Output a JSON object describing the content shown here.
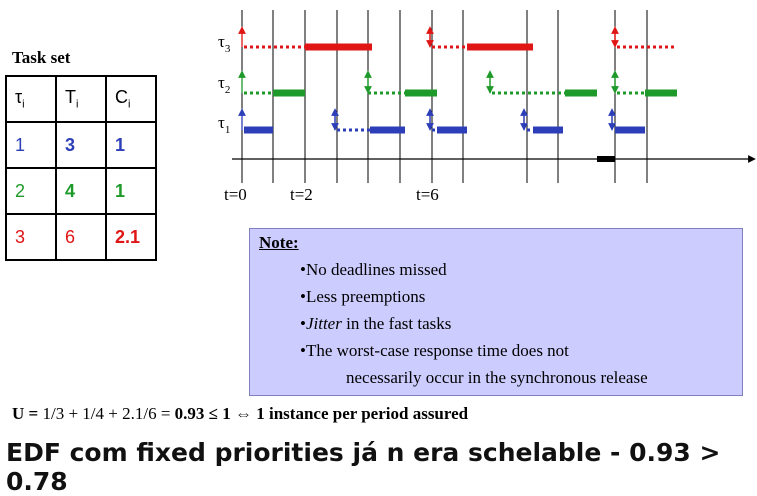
{
  "task_set": {
    "title": "Task set",
    "header": [
      {
        "symbol": "τ",
        "sub": "i"
      },
      {
        "symbol": "T",
        "sub": "i"
      },
      {
        "symbol": "C",
        "sub": "i"
      }
    ],
    "rows": [
      [
        "1",
        "3",
        "1"
      ],
      [
        "2",
        "4",
        "1"
      ],
      [
        "3",
        "6",
        "2.1"
      ]
    ]
  },
  "timeline": {
    "task_labels": [
      {
        "symbol": "τ",
        "sub": "3"
      },
      {
        "symbol": "τ",
        "sub": "2"
      },
      {
        "symbol": "τ",
        "sub": "1"
      }
    ],
    "time_labels": [
      "t=0",
      "t=2",
      "t=6"
    ]
  },
  "note": {
    "title": "Note:",
    "items": [
      "•No deadlines missed",
      "•Less preemptions",
      {
        "bullet": "•",
        "em": "Jitter",
        "text": " in the fast tasks"
      },
      "•The worst-case response time does not",
      "necessarily occur in the synchronous release"
    ]
  },
  "utilization": {
    "prefix": "U =",
    "expression": " 1/3 + 1/4 + 2.1/6 = ",
    "result": "0.93 ≤ 1 ⇔ 1 instance per period assured"
  },
  "caption": "EDF com fixed priorities já n era schelable - 0.93 > 0.78"
}
